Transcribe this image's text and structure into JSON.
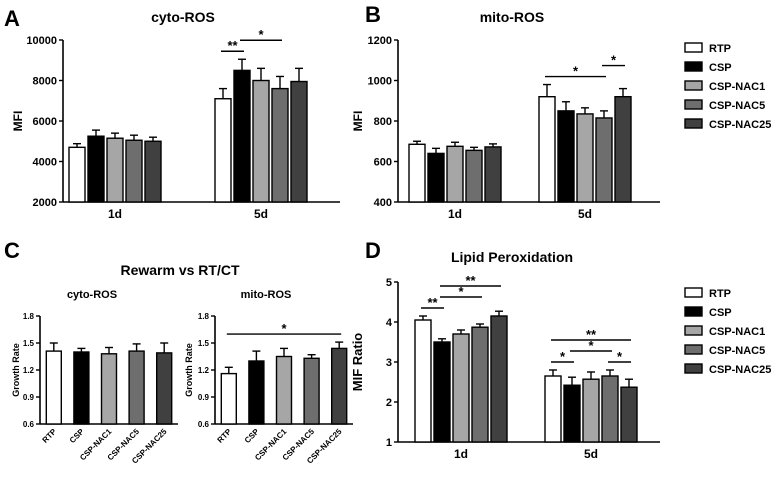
{
  "colors": {
    "RTP": "#ffffff",
    "CSP": "#000000",
    "CSP-NAC1": "#a6a6a6",
    "CSP-NAC5": "#6e6e6e",
    "CSP-NAC25": "#404040",
    "stroke": "#000000"
  },
  "legend": {
    "entries": [
      "RTP",
      "CSP",
      "CSP-NAC1",
      "CSP-NAC5",
      "CSP-NAC25"
    ]
  },
  "section_c": {
    "letter": "C",
    "title": "Rewarm vs RT/CT"
  },
  "chart_data": [
    {
      "id": "A",
      "panel_letter": "A",
      "type": "bar",
      "title": "cyto-ROS",
      "ylabel": "MFI",
      "xlabel": "",
      "ylim": [
        2000,
        10000
      ],
      "yticks": [
        2000,
        4000,
        6000,
        8000,
        10000
      ],
      "tick_labels": [
        "2000",
        "4000",
        "6000",
        "8000",
        "10000"
      ],
      "categories": [
        "1d",
        "5d"
      ],
      "series": [
        {
          "name": "RTP",
          "values": [
            4700,
            7100
          ],
          "errors": [
            180,
            500
          ]
        },
        {
          "name": "CSP",
          "values": [
            5250,
            8500
          ],
          "errors": [
            300,
            550
          ]
        },
        {
          "name": "CSP-NAC1",
          "values": [
            5150,
            8000
          ],
          "errors": [
            250,
            600
          ]
        },
        {
          "name": "CSP-NAC5",
          "values": [
            5050,
            7600
          ],
          "errors": [
            250,
            600
          ]
        },
        {
          "name": "CSP-NAC25",
          "values": [
            5000,
            7950
          ],
          "errors": [
            200,
            650
          ]
        }
      ],
      "annotations": [
        {
          "label": "**",
          "cat": 1,
          "from": 0,
          "to": 1
        },
        {
          "label": "*",
          "cat": 1,
          "from": 1,
          "to": 3
        }
      ]
    },
    {
      "id": "B",
      "panel_letter": "B",
      "type": "bar",
      "title": "mito-ROS",
      "ylabel": "MFI",
      "xlabel": "",
      "ylim": [
        400,
        1200
      ],
      "yticks": [
        400,
        600,
        800,
        1000,
        1200
      ],
      "tick_labels": [
        "400",
        "600",
        "800",
        "1000",
        "1200"
      ],
      "categories": [
        "1d",
        "5d"
      ],
      "series": [
        {
          "name": "RTP",
          "values": [
            685,
            920
          ],
          "errors": [
            15,
            60
          ]
        },
        {
          "name": "CSP",
          "values": [
            640,
            850
          ],
          "errors": [
            25,
            45
          ]
        },
        {
          "name": "CSP-NAC1",
          "values": [
            675,
            835
          ],
          "errors": [
            20,
            30
          ]
        },
        {
          "name": "CSP-NAC5",
          "values": [
            655,
            815
          ],
          "errors": [
            15,
            35
          ]
        },
        {
          "name": "CSP-NAC25",
          "values": [
            672,
            920
          ],
          "errors": [
            15,
            40
          ]
        }
      ],
      "annotations": [
        {
          "label": "*",
          "cat": 1,
          "from": 0,
          "to": 3
        },
        {
          "label": "*",
          "cat": 1,
          "from": 3,
          "to": 4
        }
      ]
    },
    {
      "id": "C1",
      "panel_letter": "",
      "type": "bar",
      "title": "cyto-ROS",
      "ylabel": "Growth Rate",
      "xlabel": "",
      "ylim": [
        0.6,
        1.8
      ],
      "yticks": [
        0.6,
        0.9,
        1.2,
        1.5,
        1.8
      ],
      "tick_labels": [
        "0.6",
        "0.9",
        "1.2",
        "1.5",
        "1.8"
      ],
      "categories": [
        "RTP",
        "CSP",
        "CSP-NAC1",
        "CSP-NAC5",
        "CSP-NAC25"
      ],
      "values": [
        1.41,
        1.4,
        1.38,
        1.41,
        1.39
      ],
      "errors": [
        0.09,
        0.04,
        0.07,
        0.08,
        0.11
      ],
      "annotations": []
    },
    {
      "id": "C2",
      "panel_letter": "",
      "type": "bar",
      "title": "mito-ROS",
      "ylabel": "Growth Rate",
      "xlabel": "",
      "ylim": [
        0.6,
        1.8
      ],
      "yticks": [
        0.6,
        0.9,
        1.2,
        1.5,
        1.8
      ],
      "tick_labels": [
        "0.6",
        "0.9",
        "1.2",
        "1.5",
        "1.8"
      ],
      "categories": [
        "RTP",
        "CSP",
        "CSP-NAC1",
        "CSP-NAC5",
        "CSP-NAC25"
      ],
      "values": [
        1.16,
        1.3,
        1.35,
        1.33,
        1.44
      ],
      "errors": [
        0.07,
        0.11,
        0.09,
        0.04,
        0.07
      ],
      "annotations": [
        {
          "label": "*",
          "from": 0,
          "to": 4
        }
      ]
    },
    {
      "id": "D",
      "panel_letter": "D",
      "type": "bar",
      "title": "Lipid Peroxidation",
      "ylabel": "MIF Ratio",
      "xlabel": "",
      "ylim": [
        1,
        5
      ],
      "yticks": [
        1,
        2,
        3,
        4,
        5
      ],
      "tick_labels": [
        "1",
        "2",
        "3",
        "4",
        "5"
      ],
      "categories": [
        "1d",
        "5d"
      ],
      "series": [
        {
          "name": "RTP",
          "values": [
            4.05,
            2.65
          ],
          "errors": [
            0.1,
            0.15
          ]
        },
        {
          "name": "CSP",
          "values": [
            3.5,
            2.42
          ],
          "errors": [
            0.08,
            0.2
          ]
        },
        {
          "name": "CSP-NAC1",
          "values": [
            3.7,
            2.57
          ],
          "errors": [
            0.1,
            0.18
          ]
        },
        {
          "name": "CSP-NAC5",
          "values": [
            3.87,
            2.65
          ],
          "errors": [
            0.08,
            0.15
          ]
        },
        {
          "name": "CSP-NAC25",
          "values": [
            4.15,
            2.37
          ],
          "errors": [
            0.12,
            0.2
          ]
        }
      ],
      "annotations": [
        {
          "label": "**",
          "cat": 0,
          "from": 0,
          "to": 1
        },
        {
          "label": "*",
          "cat": 0,
          "from": 1,
          "to": 3
        },
        {
          "label": "**",
          "cat": 0,
          "from": 1,
          "to": 4
        },
        {
          "label": "*",
          "cat": 1,
          "from": 0,
          "to": 1
        },
        {
          "label": "*",
          "cat": 1,
          "from": 1,
          "to": 3
        },
        {
          "label": "*",
          "cat": 1,
          "from": 3,
          "to": 4
        },
        {
          "label": "**",
          "cat": 1,
          "from": 0,
          "to": 4
        }
      ]
    }
  ]
}
